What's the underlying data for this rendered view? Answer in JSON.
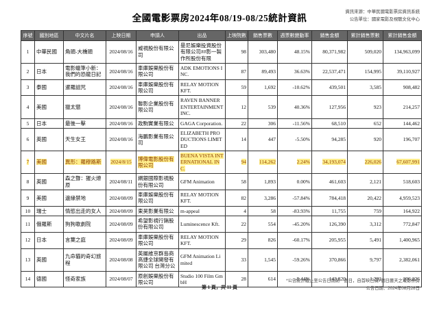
{
  "page": {
    "title": "全國電影票房2024年08/19-08/25統計資訊",
    "source_line1": "資訊來源：中華民國電影票房資訊系統",
    "source_line2": "公告單位：國家電影及視聽文化中心",
    "page_indicator": "第 1 頁，共 11 頁",
    "footnote": "*公告統計截止至公告日期前一週日，自首映已滿7個日曆天之電影票房",
    "publish_date": "公告日期：2024年08月28日"
  },
  "colors": {
    "header_bg": "#666666",
    "header_text": "#ffffff",
    "highlight_bg": "#ffee8c",
    "highlight_text": "#8c3d00",
    "border": "#333333"
  },
  "table": {
    "columns": [
      "序號",
      "國別地區",
      "中文片名",
      "上映日期",
      "申請人",
      "出品",
      "上映院數",
      "銷售票數",
      "週票數變動率",
      "銷售金額",
      "累計銷售票數",
      "累計銷售金額"
    ],
    "rows": [
      {
        "no": "1",
        "region": "中華民國",
        "title": "角頭-大橋頭",
        "date": "2024/08/16",
        "applicant": "威視股份有限公司",
        "studio": "曼尼娛樂投資股份有限公司##影一製作所股份有限",
        "theaters": "98",
        "tickets": "303,480",
        "change": "48.15%",
        "amount": "80,371,982",
        "cum_tickets": "509,020",
        "cum_amount": "134,963,099",
        "highlight": false
      },
      {
        "no": "2",
        "region": "日本",
        "title": "電影蠟筆小新：我們的恐龍日記",
        "date": "2024/08/16",
        "applicant": "車庫娛樂股份有限公司",
        "studio": "ADK EMOTIONS INC.",
        "theaters": "87",
        "tickets": "89,493",
        "change": "36.63%",
        "amount": "22,537,471",
        "cum_tickets": "154,995",
        "cum_amount": "39,110,927",
        "highlight": false
      },
      {
        "no": "3",
        "region": "泰國",
        "title": "暹羅詛咒",
        "date": "2024/08/16",
        "applicant": "車庫娛樂股份有限公司",
        "studio": "RELAY MOTION KFT.",
        "theaters": "59",
        "tickets": "1,692",
        "change": "-10.62%",
        "amount": "439,501",
        "cum_tickets": "3,585",
        "cum_amount": "908,482",
        "highlight": false
      },
      {
        "no": "4",
        "region": "美國",
        "title": "獵太懲",
        "date": "2024/08/16",
        "applicant": "聯影企業股份有限公司",
        "studio": "RAVEN BANNER ENTERTAINMENT INC.",
        "theaters": "12",
        "tickets": "539",
        "change": "40.36%",
        "amount": "127,956",
        "cum_tickets": "923",
        "cum_amount": "214,257",
        "highlight": false
      },
      {
        "no": "5",
        "region": "日本",
        "title": "最後一擊",
        "date": "2024/08/16",
        "applicant": "政駒實業有限公",
        "studio": "GAGA Corporation.",
        "theaters": "22",
        "tickets": "306",
        "change": "-11.56%",
        "amount": "68,510",
        "cum_tickets": "652",
        "cum_amount": "144,462",
        "highlight": false
      },
      {
        "no": "6",
        "region": "英國",
        "title": "天生女王",
        "date": "2024/08/16",
        "applicant": "海鵬影業有限公司",
        "studio": "ELIZABETH PRODUCTIONS LIMITED",
        "theaters": "14",
        "tickets": "447",
        "change": "-5.50%",
        "amount": "94,285",
        "cum_tickets": "920",
        "cum_amount": "196,707",
        "highlight": false
      },
      {
        "no": "7",
        "region": "美國",
        "title": "異形：羅穆路斯",
        "date": "2024/8/15",
        "applicant": "博偉電影股份有限公司",
        "studio": "BUENA VISTA INTERNATIONAL INC.",
        "theaters": "94",
        "tickets": "114,262",
        "change": "2.24%",
        "amount": "34,193,074",
        "cum_tickets": "226,026",
        "cum_amount": "67,607,991",
        "highlight": true
      },
      {
        "no": "8",
        "region": "英國",
        "title": "森之聲：猩火燎原",
        "date": "2024/08/11",
        "applicant": "網銀國際影視股份有限公司",
        "studio": "GFM Animation",
        "theaters": "58",
        "tickets": "1,893",
        "change": "0.00%",
        "amount": "461,603",
        "cum_tickets": "2,121",
        "cum_amount": "518,603",
        "highlight": false
      },
      {
        "no": "9",
        "region": "美國",
        "title": "邊緣禁地",
        "date": "2024/08/09",
        "applicant": "車庫娛樂股份有限公司",
        "studio": "RELAY MOTION KFT.",
        "theaters": "82",
        "tickets": "3,286",
        "change": "-57.84%",
        "amount": "784,418",
        "cum_tickets": "20,422",
        "cum_amount": "4,959,523",
        "highlight": false
      },
      {
        "no": "10",
        "region": "瑞士",
        "title": "情慾出走的女人",
        "date": "2024/08/09",
        "applicant": "東昊影業有限公",
        "studio": "m-appeal",
        "theaters": "4",
        "tickets": "58",
        "change": "-83.93%",
        "amount": "11,755",
        "cum_tickets": "759",
        "cum_amount": "164,922",
        "highlight": false
      },
      {
        "no": "11",
        "region": "俄羅斯",
        "title": "狗狗歌劇院",
        "date": "2024/08/09",
        "applicant": "希望影視行銷股份有限公司",
        "studio": "Luminescence Kft.",
        "theaters": "22",
        "tickets": "554",
        "change": "-45.20%",
        "amount": "126,390",
        "cum_tickets": "3,312",
        "cum_amount": "772,847",
        "highlight": false
      },
      {
        "no": "12",
        "region": "日本",
        "title": "言葉之庭",
        "date": "2024/08/09",
        "applicant": "車庫娛樂股份有限公司",
        "studio": "RELAY MOTION KFT.",
        "theaters": "29",
        "tickets": "826",
        "change": "-60.17%",
        "amount": "205,955",
        "cum_tickets": "5,491",
        "cum_amount": "1,400,965",
        "highlight": false
      },
      {
        "no": "13",
        "region": "英國",
        "title": "九命貓的奇幻旅程",
        "date": "2024/08/08",
        "applicant": "英屬維京群島商高捷全球開發有限公司 台灣分公",
        "studio": "GFM Animation Limited",
        "theaters": "33",
        "tickets": "1,545",
        "change": "-59.26%",
        "amount": "370,866",
        "cum_tickets": "9,797",
        "cum_amount": "2,382,061",
        "highlight": false
      },
      {
        "no": "14",
        "region": "德國",
        "title": "怪奇家族",
        "date": "2024/08/07",
        "applicant": "原創娛樂股份有限公司",
        "studio": "Studio 100 Film GmbH",
        "theaters": "28",
        "tickets": "614",
        "change": "-9.44%",
        "amount": "143,820",
        "cum_tickets": "1,292",
        "cum_amount": "306,226",
        "highlight": false
      }
    ]
  }
}
